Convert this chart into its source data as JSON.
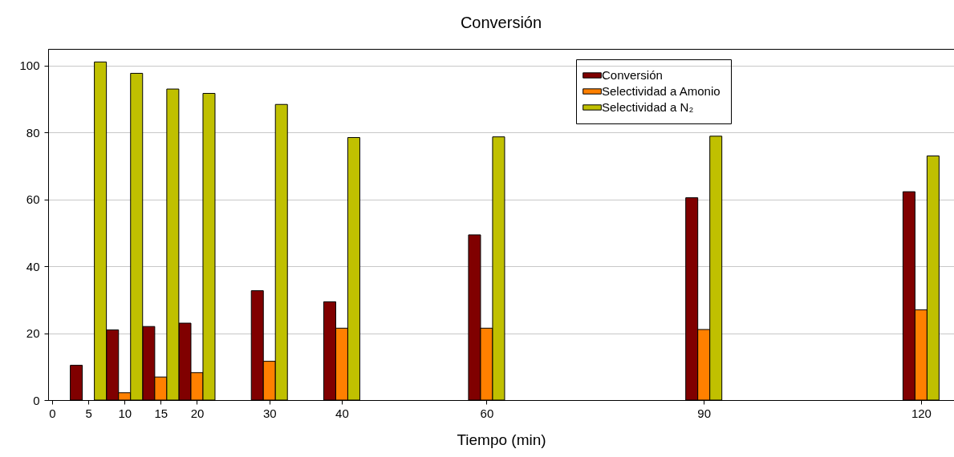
{
  "chart_data": {
    "type": "bar",
    "title": "Conversión",
    "xlabel": "Tiempo (min)",
    "x": [
      5,
      10,
      15,
      20,
      30,
      40,
      60,
      90,
      120
    ],
    "series": [
      {
        "name": "Conversión",
        "color": "#800000",
        "values": [
          10.4,
          21.0,
          22.0,
          23.0,
          32.7,
          29.4,
          49.4,
          60.5,
          62.3
        ]
      },
      {
        "name": "Selectividad a Amonio",
        "color": "#ff8000",
        "values": [
          null,
          2.2,
          6.9,
          8.2,
          11.6,
          21.5,
          21.5,
          21.1,
          27.0
        ]
      },
      {
        "name": "Selectividad a N₂",
        "color": "#c0c000",
        "values": [
          101.1,
          97.7,
          93.0,
          91.7,
          88.4,
          78.5,
          78.7,
          78.9,
          73.0
        ]
      }
    ],
    "xlim": [
      0,
      124
    ],
    "xticks": [
      0,
      5,
      10,
      15,
      20,
      30,
      40,
      60,
      90,
      120
    ],
    "ylim": [
      0,
      105
    ],
    "yticks": [
      0,
      20,
      40,
      60,
      80,
      100
    ],
    "grid": "y",
    "legend": "top right"
  }
}
